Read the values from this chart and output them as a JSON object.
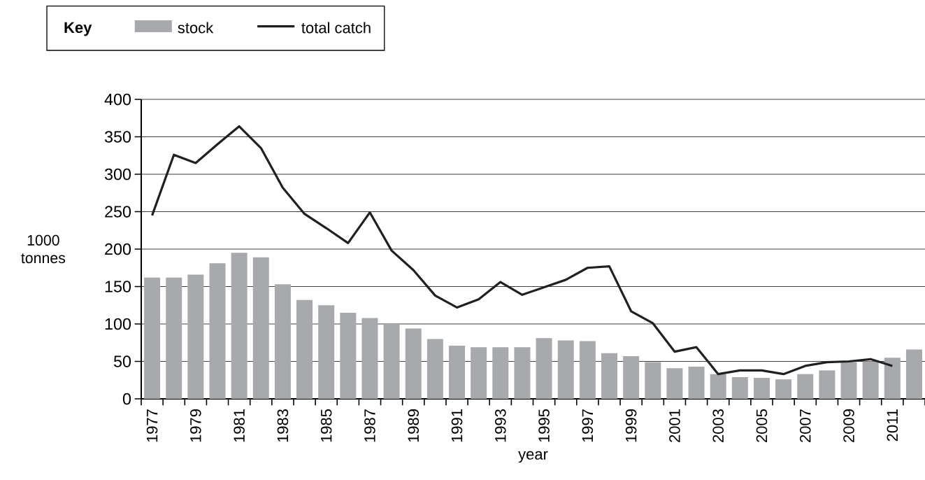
{
  "chart_data": {
    "type": "bar",
    "xlabel": "year",
    "ylabel": "1000 tonnes",
    "legend_title": "**Key**",
    "categories": [
      "1977",
      null,
      "1979",
      null,
      "1981",
      null,
      "1983",
      null,
      "1985",
      null,
      "1987",
      null,
      "1989",
      null,
      "1991",
      null,
      "1993",
      null,
      "1995",
      null,
      "1997",
      null,
      "1999",
      null,
      "2001",
      null,
      "2003",
      null,
      "2005",
      null,
      "2007",
      null,
      "2009",
      null,
      "2011",
      null
    ],
    "series": [
      {
        "name": "stock",
        "color": "#a7a9ac",
        "values": [
          162,
          162,
          166,
          181,
          195,
          189,
          153,
          132,
          125,
          115,
          108,
          100,
          94,
          80,
          71,
          69,
          69,
          69,
          81,
          78,
          77,
          61,
          57,
          49,
          41,
          43,
          33,
          29,
          28,
          26,
          33,
          38,
          49,
          50,
          55,
          66
        ]
      },
      {
        "name": "total catch",
        "type": "line",
        "color": "#231f20",
        "values": [
          245,
          326,
          315,
          340,
          364,
          335,
          282,
          247,
          228,
          208,
          249,
          198,
          172,
          138,
          122,
          133,
          156,
          139,
          149,
          159,
          175,
          177,
          117,
          101,
          63,
          69,
          33,
          38,
          38,
          33,
          44,
          49,
          50,
          53,
          44,
          null
        ]
      }
    ],
    "ylim": [
      0,
      400
    ],
    "yticks": [
      0,
      50,
      100,
      150,
      200,
      250,
      300,
      350,
      400
    ],
    "grid": "y",
    "legend": "top left"
  }
}
